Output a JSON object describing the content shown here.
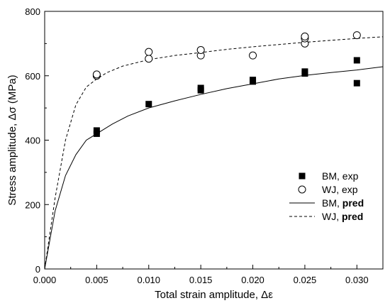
{
  "chart_data": {
    "type": "scatter",
    "xlabel": "Total strain amplitude, Δε",
    "ylabel": "Stress amplitude, Δσ (MPa)",
    "xlim": [
      0,
      0.0325
    ],
    "ylim": [
      0,
      800
    ],
    "xticks": [
      0,
      0.005,
      0.01,
      0.015,
      0.02,
      0.025,
      0.03
    ],
    "xtick_labels": [
      "0.000",
      "0.005",
      "0.010",
      "0.015",
      "0.020",
      "0.025",
      "0.030"
    ],
    "yticks": [
      0,
      200,
      400,
      600,
      800
    ],
    "ytick_labels": [
      "0",
      "200",
      "400",
      "600",
      "800"
    ],
    "grid": false,
    "legend_position": "lower-right",
    "series": [
      {
        "name": "BM, exp",
        "kind": "points",
        "marker": "filled-square",
        "color": "#000000",
        "points": [
          [
            0.005,
            420
          ],
          [
            0.005,
            430
          ],
          [
            0.01,
            512
          ],
          [
            0.015,
            555
          ],
          [
            0.015,
            562
          ],
          [
            0.02,
            582
          ],
          [
            0.02,
            587
          ],
          [
            0.025,
            607
          ],
          [
            0.025,
            613
          ],
          [
            0.03,
            577
          ],
          [
            0.03,
            648
          ]
        ]
      },
      {
        "name": "WJ, exp",
        "kind": "points",
        "marker": "open-circle",
        "color": "#000000",
        "points": [
          [
            0.005,
            600
          ],
          [
            0.005,
            604
          ],
          [
            0.01,
            653
          ],
          [
            0.01,
            674
          ],
          [
            0.015,
            663
          ],
          [
            0.015,
            680
          ],
          [
            0.02,
            663
          ],
          [
            0.025,
            700
          ],
          [
            0.025,
            716
          ],
          [
            0.025,
            722
          ],
          [
            0.03,
            726
          ]
        ]
      },
      {
        "name": "BM, pred",
        "kind": "line",
        "dash": "solid",
        "color": "#000000",
        "points": [
          [
            0,
            0
          ],
          [
            0.001,
            180
          ],
          [
            0.002,
            290
          ],
          [
            0.003,
            355
          ],
          [
            0.004,
            400
          ],
          [
            0.005,
            420
          ],
          [
            0.0065,
            450
          ],
          [
            0.008,
            475
          ],
          [
            0.01,
            500
          ],
          [
            0.0125,
            522
          ],
          [
            0.015,
            542
          ],
          [
            0.0175,
            560
          ],
          [
            0.02,
            575
          ],
          [
            0.0225,
            590
          ],
          [
            0.025,
            601
          ],
          [
            0.0275,
            610
          ],
          [
            0.03,
            618
          ],
          [
            0.0325,
            628
          ]
        ]
      },
      {
        "name": "WJ, pred",
        "kind": "line",
        "dash": "dashed",
        "color": "#000000",
        "points": [
          [
            0,
            0
          ],
          [
            0.001,
            220
          ],
          [
            0.002,
            400
          ],
          [
            0.003,
            510
          ],
          [
            0.004,
            565
          ],
          [
            0.005,
            590
          ],
          [
            0.006,
            610
          ],
          [
            0.0075,
            630
          ],
          [
            0.01,
            650
          ],
          [
            0.0125,
            663
          ],
          [
            0.015,
            672
          ],
          [
            0.0175,
            682
          ],
          [
            0.02,
            690
          ],
          [
            0.0225,
            697
          ],
          [
            0.025,
            704
          ],
          [
            0.0275,
            710
          ],
          [
            0.03,
            716
          ],
          [
            0.0325,
            721
          ]
        ]
      }
    ],
    "legend": [
      {
        "label": "BM, exp",
        "bold_part": ""
      },
      {
        "label": "WJ, exp",
        "bold_part": ""
      },
      {
        "label": "BM, ",
        "bold_part": "pred"
      },
      {
        "label": "WJ, ",
        "bold_part": "pred"
      }
    ]
  }
}
